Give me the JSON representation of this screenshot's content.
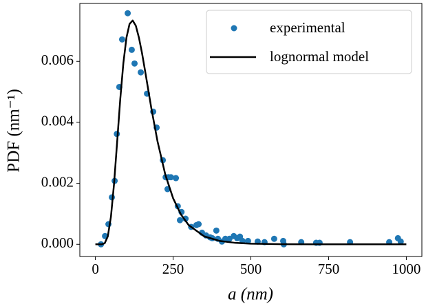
{
  "chart_data": {
    "type": "scatter",
    "xlabel": "a (nm)",
    "ylabel": "PDF (nm⁻¹)",
    "xlim": [
      -50,
      1050
    ],
    "ylim": [
      -0.0004,
      0.0079
    ],
    "xticks": [
      0,
      250,
      500,
      750,
      1000
    ],
    "yticks": [
      {
        "value": 0,
        "label": "0.000"
      },
      {
        "value": 0.002,
        "label": "0.002"
      },
      {
        "value": 0.004,
        "label": "0.004"
      },
      {
        "value": 0.006,
        "label": "0.006"
      }
    ],
    "grid": false,
    "legend": "upper right",
    "series": [
      {
        "name": "experimental",
        "type": "scatter",
        "color": "#1f77b4",
        "x": [
          18,
          31,
          42,
          53,
          62,
          69,
          77,
          86,
          104,
          117,
          126,
          146,
          166,
          186,
          197,
          217,
          226,
          235,
          243,
          259,
          232,
          265,
          277,
          272,
          290,
          308,
          325,
          332,
          343,
          356,
          369,
          389,
          376,
          394,
          407,
          418,
          431,
          445,
          456,
          465,
          473,
          491,
          522,
          544,
          575,
          604,
          606,
          662,
          710,
          721,
          819,
          945,
          973,
          982
        ],
        "y": [
          0,
          0.00027,
          0.00066,
          0.00154,
          0.00208,
          0.00362,
          0.00516,
          0.00672,
          0.00758,
          0.00638,
          0.00593,
          0.00564,
          0.00494,
          0.00435,
          0.00383,
          0.00276,
          0.0022,
          0.0022,
          0.0022,
          0.00217,
          0.00181,
          0.00125,
          0.00106,
          0.00079,
          0.00084,
          0.00057,
          0.00063,
          0.00066,
          0.00038,
          0.00029,
          0.00023,
          0.00045,
          0.0002,
          0.00018,
          9e-05,
          0.00018,
          0.00018,
          0.00027,
          0.0002,
          0.00025,
          0.00011,
          0.00011,
          9e-05,
          7e-05,
          0.00018,
          0.00011,
          0,
          7e-05,
          5e-05,
          5e-05,
          7e-05,
          7e-05,
          0.0002,
          9e-05
        ]
      },
      {
        "name": "lognormal model",
        "type": "line",
        "color": "#000000",
        "x": [
          0,
          20,
          30,
          40,
          50,
          60,
          70,
          80,
          90,
          100,
          110,
          120,
          130,
          140,
          150,
          160,
          180,
          200,
          225,
          250,
          275,
          300,
          350,
          400,
          450,
          500,
          600,
          700,
          800,
          900,
          1000
        ],
        "y": [
          0,
          0,
          3.5e-05,
          0.00026,
          0.0009,
          0.00198,
          0.00336,
          0.00476,
          0.00594,
          0.00678,
          0.00723,
          0.00734,
          0.00717,
          0.00678,
          0.00627,
          0.00568,
          0.00446,
          0.00337,
          0.00228,
          0.00151,
          0.00098,
          0.00063,
          0.00026,
          0.00011,
          4.7e-05,
          2e-05,
          4e-06,
          0,
          0,
          0,
          0
        ]
      }
    ]
  }
}
